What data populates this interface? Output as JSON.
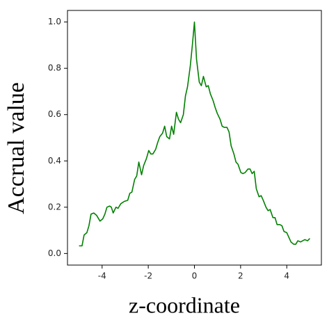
{
  "chart_data": {
    "type": "line",
    "xlabel": "z-coordinate",
    "ylabel": "Accrual value",
    "xlim": [
      -5.5,
      5.5
    ],
    "ylim": [
      -0.05,
      1.05
    ],
    "xticks": [
      -4,
      -2,
      0,
      2,
      4
    ],
    "yticks": [
      {
        "value": 0,
        "label": "0.0"
      },
      0.2,
      0.4,
      0.6,
      0.8,
      {
        "value": 1,
        "label": "1.0"
      }
    ],
    "x": [
      -5.0,
      -4.87,
      -4.78,
      -4.66,
      -4.57,
      -4.48,
      -4.36,
      -4.24,
      -4.09,
      -3.97,
      -3.88,
      -3.79,
      -3.67,
      -3.6,
      -3.52,
      -3.4,
      -3.31,
      -3.19,
      -3.04,
      -2.89,
      -2.8,
      -2.71,
      -2.59,
      -2.5,
      -2.41,
      -2.29,
      -2.2,
      -2.08,
      -1.98,
      -1.89,
      -1.8,
      -1.68,
      -1.59,
      -1.5,
      -1.38,
      -1.29,
      -1.2,
      -1.08,
      -0.99,
      -0.9,
      -0.78,
      -0.69,
      -0.6,
      -0.48,
      -0.39,
      -0.3,
      -0.18,
      -0.09,
      0,
      0.09,
      0.21,
      0.3,
      0.39,
      0.51,
      0.6,
      0.69,
      0.81,
      0.9,
      0.99,
      1.11,
      1.2,
      1.29,
      1.41,
      1.5,
      1.59,
      1.71,
      1.8,
      1.89,
      2.01,
      2.1,
      2.2,
      2.32,
      2.41,
      2.5,
      2.59,
      2.68,
      2.8,
      2.89,
      2.98,
      3.1,
      3.19,
      3.28,
      3.4,
      3.49,
      3.58,
      3.7,
      3.79,
      3.88,
      4.0,
      4.09,
      4.18,
      4.3,
      4.39,
      4.48,
      4.6,
      4.69,
      4.78,
      4.9,
      5.0
    ],
    "series": [
      {
        "color": "#008000",
        "values": [
          0.033,
          0.033,
          0.08,
          0.09,
          0.12,
          0.17,
          0.175,
          0.165,
          0.14,
          0.15,
          0.17,
          0.2,
          0.205,
          0.2,
          0.175,
          0.2,
          0.195,
          0.215,
          0.225,
          0.23,
          0.26,
          0.265,
          0.32,
          0.335,
          0.395,
          0.34,
          0.38,
          0.41,
          0.445,
          0.43,
          0.43,
          0.45,
          0.48,
          0.505,
          0.52,
          0.55,
          0.505,
          0.495,
          0.55,
          0.515,
          0.61,
          0.58,
          0.565,
          0.6,
          0.68,
          0.72,
          0.81,
          0.9,
          1.0,
          0.84,
          0.74,
          0.725,
          0.765,
          0.72,
          0.725,
          0.69,
          0.66,
          0.63,
          0.605,
          0.58,
          0.55,
          0.545,
          0.545,
          0.525,
          0.465,
          0.43,
          0.395,
          0.385,
          0.35,
          0.345,
          0.35,
          0.365,
          0.365,
          0.345,
          0.355,
          0.28,
          0.245,
          0.25,
          0.23,
          0.2,
          0.185,
          0.19,
          0.155,
          0.155,
          0.125,
          0.125,
          0.12,
          0.095,
          0.09,
          0.07,
          0.05,
          0.04,
          0.04,
          0.055,
          0.05,
          0.055,
          0.06,
          0.055,
          0.065
        ]
      }
    ]
  }
}
